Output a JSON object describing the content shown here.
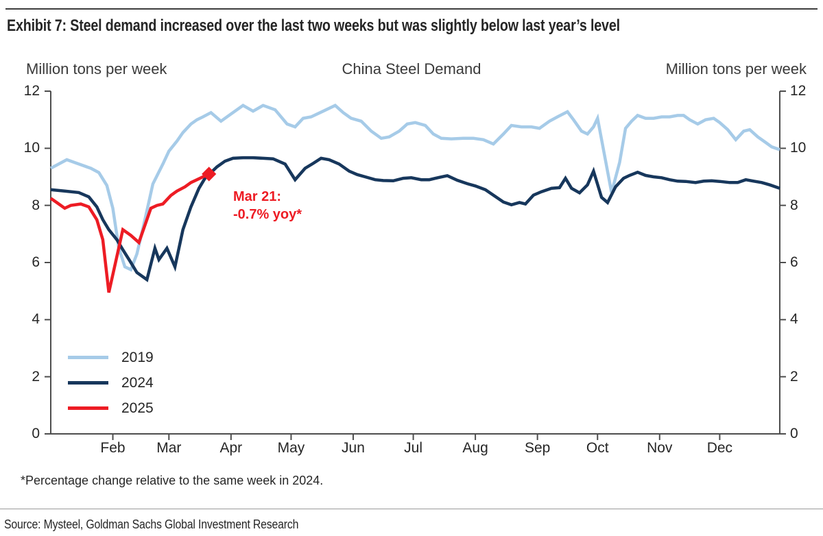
{
  "exhibit": {
    "title": "Exhibit 7: Steel demand increased over the last two weeks but was slightly below last year’s level"
  },
  "header": {
    "left_axis_title": "Million tons per week",
    "center_title": "China Steel Demand",
    "right_axis_title": "Million tons per week"
  },
  "footer": {
    "footnote": "*Percentage change relative to the same week in 2024.",
    "source": "Source: Mysteel, Goldman Sachs Global Investment Research"
  },
  "chart_data": {
    "type": "line",
    "title": "China Steel Demand",
    "ylabel_left": "Million tons per week",
    "ylabel_right": "Million tons per week",
    "ylim": [
      0,
      12
    ],
    "y_ticks": [
      0,
      2,
      4,
      6,
      8,
      10,
      12
    ],
    "x_unit": "day_of_year",
    "x_range_days": [
      1,
      365
    ],
    "x_months": [
      {
        "label": "Feb",
        "day": 32
      },
      {
        "label": "Mar",
        "day": 60
      },
      {
        "label": "Apr",
        "day": 91
      },
      {
        "label": "May",
        "day": 121
      },
      {
        "label": "Jun",
        "day": 152
      },
      {
        "label": "Jul",
        "day": 182
      },
      {
        "label": "Aug",
        "day": 213
      },
      {
        "label": "Sep",
        "day": 244
      },
      {
        "label": "Oct",
        "day": 274
      },
      {
        "label": "Nov",
        "day": 305
      },
      {
        "label": "Dec",
        "day": 335
      }
    ],
    "grid": false,
    "legend_position": "lower-left",
    "axis_color": "#4d4d4d",
    "annotation": {
      "line1": "Mar 21:",
      "line2": "-0.7% yoy*",
      "color": "#ED1C24",
      "anchor_day": 80,
      "anchor_value": 9.1
    },
    "series": [
      {
        "name": "2019",
        "color": "#A6CBE8",
        "points": [
          [
            1,
            9.3
          ],
          [
            9,
            9.6
          ],
          [
            15,
            9.45
          ],
          [
            21,
            9.3
          ],
          [
            25,
            9.15
          ],
          [
            29,
            8.7
          ],
          [
            32,
            7.9
          ],
          [
            35,
            6.5
          ],
          [
            38,
            5.85
          ],
          [
            41,
            5.75
          ],
          [
            44,
            6.3
          ],
          [
            48,
            7.5
          ],
          [
            52,
            8.75
          ],
          [
            57,
            9.45
          ],
          [
            60,
            9.9
          ],
          [
            64,
            10.25
          ],
          [
            67,
            10.55
          ],
          [
            71,
            10.85
          ],
          [
            74,
            11.0
          ],
          [
            77,
            11.1
          ],
          [
            81,
            11.25
          ],
          [
            86,
            10.95
          ],
          [
            91,
            11.2
          ],
          [
            97,
            11.5
          ],
          [
            102,
            11.3
          ],
          [
            107,
            11.5
          ],
          [
            113,
            11.35
          ],
          [
            119,
            10.85
          ],
          [
            123,
            10.75
          ],
          [
            127,
            11.05
          ],
          [
            131,
            11.1
          ],
          [
            137,
            11.3
          ],
          [
            143,
            11.5
          ],
          [
            147,
            11.25
          ],
          [
            151,
            11.05
          ],
          [
            156,
            10.95
          ],
          [
            161,
            10.6
          ],
          [
            166,
            10.35
          ],
          [
            170,
            10.4
          ],
          [
            175,
            10.6
          ],
          [
            179,
            10.85
          ],
          [
            183,
            10.9
          ],
          [
            188,
            10.8
          ],
          [
            192,
            10.5
          ],
          [
            196,
            10.35
          ],
          [
            201,
            10.33
          ],
          [
            207,
            10.35
          ],
          [
            212,
            10.35
          ],
          [
            217,
            10.3
          ],
          [
            222,
            10.15
          ],
          [
            227,
            10.5
          ],
          [
            231,
            10.8
          ],
          [
            236,
            10.75
          ],
          [
            241,
            10.75
          ],
          [
            245,
            10.7
          ],
          [
            250,
            10.95
          ],
          [
            254,
            11.1
          ],
          [
            259,
            11.28
          ],
          [
            262,
            11.0
          ],
          [
            266,
            10.6
          ],
          [
            269,
            10.5
          ],
          [
            272,
            10.75
          ],
          [
            274,
            11.05
          ],
          [
            281,
            8.45
          ],
          [
            285,
            9.5
          ],
          [
            288,
            10.7
          ],
          [
            291,
            10.95
          ],
          [
            294,
            11.15
          ],
          [
            298,
            11.05
          ],
          [
            302,
            11.05
          ],
          [
            306,
            11.1
          ],
          [
            310,
            11.1
          ],
          [
            314,
            11.15
          ],
          [
            317,
            11.15
          ],
          [
            320,
            11.0
          ],
          [
            324,
            10.85
          ],
          [
            328,
            11.0
          ],
          [
            332,
            11.05
          ],
          [
            335,
            10.9
          ],
          [
            339,
            10.65
          ],
          [
            343,
            10.3
          ],
          [
            347,
            10.6
          ],
          [
            350,
            10.65
          ],
          [
            354,
            10.4
          ],
          [
            358,
            10.2
          ],
          [
            361,
            10.05
          ],
          [
            365,
            9.95
          ]
        ]
      },
      {
        "name": "2024",
        "color": "#17375C",
        "points": [
          [
            1,
            8.55
          ],
          [
            8,
            8.5
          ],
          [
            15,
            8.45
          ],
          [
            20,
            8.3
          ],
          [
            24,
            7.95
          ],
          [
            27,
            7.5
          ],
          [
            30,
            7.15
          ],
          [
            34,
            6.8
          ],
          [
            37,
            6.45
          ],
          [
            41,
            6.0
          ],
          [
            44,
            5.65
          ],
          [
            49,
            5.4
          ],
          [
            53,
            6.5
          ],
          [
            55,
            6.1
          ],
          [
            59,
            6.5
          ],
          [
            63,
            5.85
          ],
          [
            67,
            7.15
          ],
          [
            71,
            7.95
          ],
          [
            75,
            8.6
          ],
          [
            78,
            8.95
          ],
          [
            81,
            9.15
          ],
          [
            84,
            9.35
          ],
          [
            88,
            9.55
          ],
          [
            92,
            9.65
          ],
          [
            97,
            9.67
          ],
          [
            102,
            9.67
          ],
          [
            107,
            9.65
          ],
          [
            112,
            9.63
          ],
          [
            118,
            9.45
          ],
          [
            123,
            8.9
          ],
          [
            128,
            9.3
          ],
          [
            132,
            9.47
          ],
          [
            136,
            9.65
          ],
          [
            140,
            9.6
          ],
          [
            145,
            9.45
          ],
          [
            150,
            9.2
          ],
          [
            154,
            9.08
          ],
          [
            158,
            9.0
          ],
          [
            163,
            8.9
          ],
          [
            167,
            8.87
          ],
          [
            172,
            8.86
          ],
          [
            177,
            8.95
          ],
          [
            181,
            8.97
          ],
          [
            186,
            8.9
          ],
          [
            190,
            8.9
          ],
          [
            195,
            8.98
          ],
          [
            199,
            9.04
          ],
          [
            204,
            8.88
          ],
          [
            209,
            8.76
          ],
          [
            213,
            8.68
          ],
          [
            218,
            8.55
          ],
          [
            222,
            8.36
          ],
          [
            227,
            8.12
          ],
          [
            231,
            8.02
          ],
          [
            235,
            8.1
          ],
          [
            238,
            8.05
          ],
          [
            242,
            8.36
          ],
          [
            246,
            8.48
          ],
          [
            251,
            8.6
          ],
          [
            255,
            8.62
          ],
          [
            258,
            8.95
          ],
          [
            261,
            8.6
          ],
          [
            265,
            8.44
          ],
          [
            269,
            8.72
          ],
          [
            272,
            9.2
          ],
          [
            276,
            8.28
          ],
          [
            279,
            8.1
          ],
          [
            283,
            8.65
          ],
          [
            287,
            8.95
          ],
          [
            290,
            9.05
          ],
          [
            294,
            9.16
          ],
          [
            298,
            9.05
          ],
          [
            302,
            9.0
          ],
          [
            306,
            8.97
          ],
          [
            310,
            8.9
          ],
          [
            314,
            8.85
          ],
          [
            318,
            8.84
          ],
          [
            323,
            8.8
          ],
          [
            327,
            8.85
          ],
          [
            331,
            8.86
          ],
          [
            335,
            8.84
          ],
          [
            340,
            8.8
          ],
          [
            344,
            8.8
          ],
          [
            348,
            8.9
          ],
          [
            352,
            8.85
          ],
          [
            356,
            8.8
          ],
          [
            360,
            8.72
          ],
          [
            365,
            8.6
          ]
        ]
      },
      {
        "name": "2025",
        "color": "#ED1C24",
        "end_marker": "diamond",
        "points": [
          [
            1,
            8.25
          ],
          [
            4,
            8.1
          ],
          [
            8,
            7.9
          ],
          [
            11,
            8.0
          ],
          [
            16,
            8.05
          ],
          [
            20,
            7.95
          ],
          [
            24,
            7.5
          ],
          [
            27,
            6.8
          ],
          [
            30,
            4.95
          ],
          [
            37,
            7.15
          ],
          [
            41,
            6.95
          ],
          [
            45,
            6.7
          ],
          [
            51,
            7.9
          ],
          [
            54,
            8.0
          ],
          [
            57,
            8.05
          ],
          [
            61,
            8.35
          ],
          [
            64,
            8.5
          ],
          [
            68,
            8.65
          ],
          [
            71,
            8.8
          ],
          [
            74,
            8.9
          ],
          [
            77,
            9.0
          ],
          [
            80,
            9.1
          ]
        ]
      }
    ]
  }
}
